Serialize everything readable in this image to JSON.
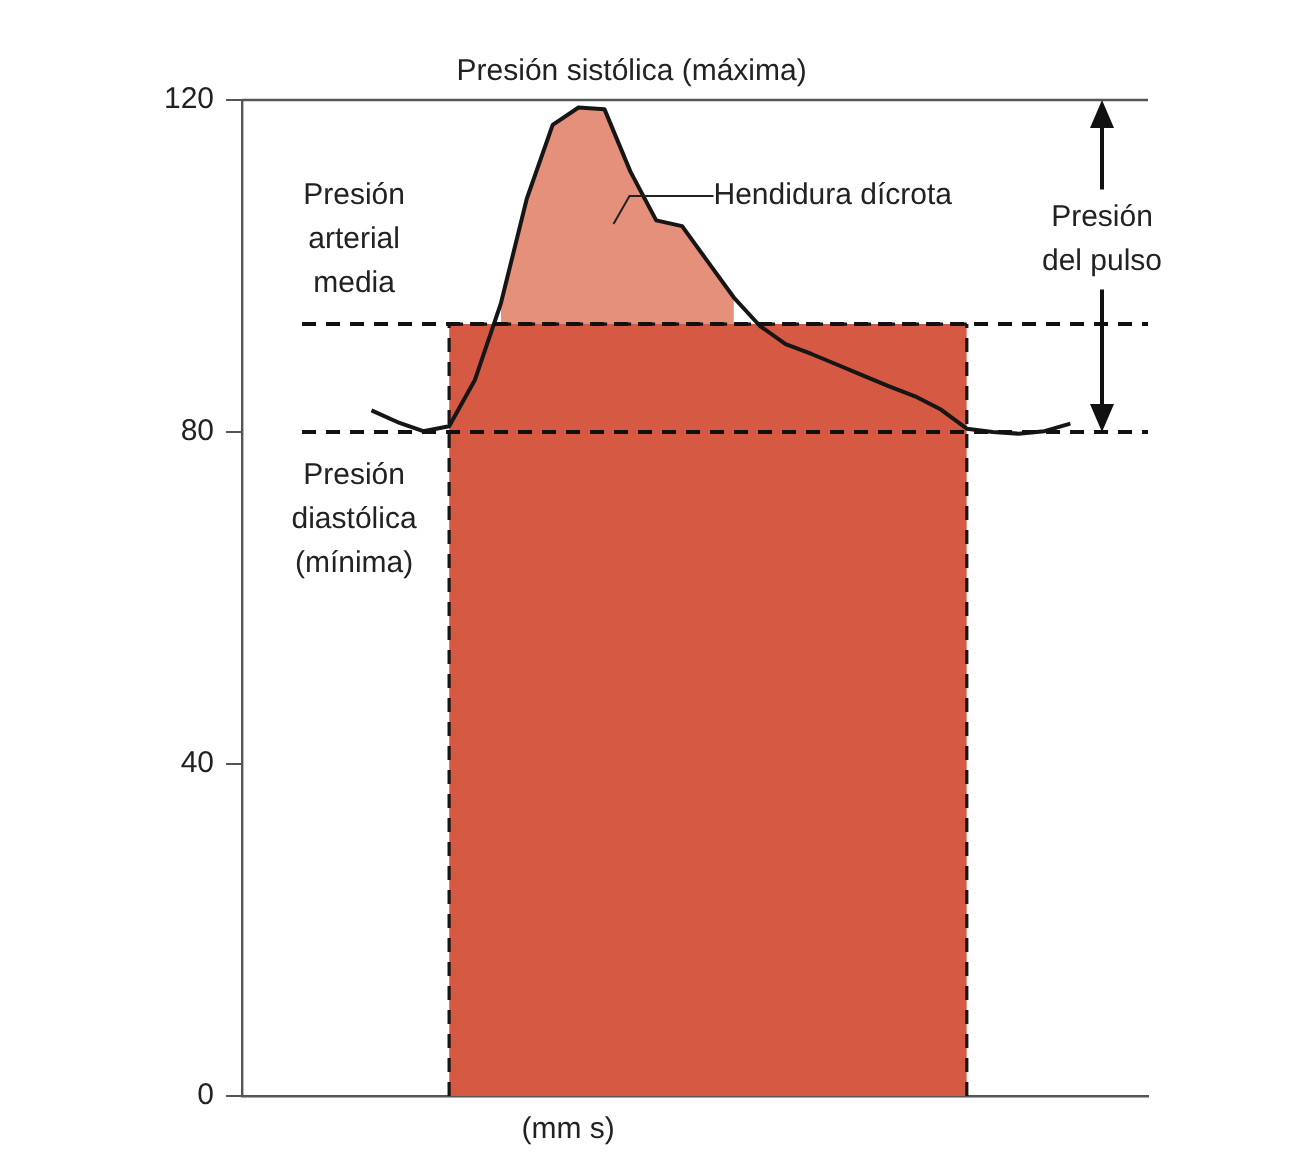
{
  "chart_data": {
    "type": "area",
    "xlabel": "(mm s)",
    "categories": [
      null,
      null,
      null,
      null,
      null,
      null,
      null,
      null,
      null,
      null,
      null,
      null,
      null,
      null,
      null,
      null,
      null,
      null,
      null,
      null,
      null,
      null,
      null,
      null,
      null,
      null,
      null,
      null,
      null,
      null,
      null,
      null,
      null,
      null,
      null,
      null
    ],
    "ylim": [
      0,
      120
    ],
    "yticks": [
      0,
      40,
      80,
      120
    ],
    "tick_labels": "y",
    "grid": false,
    "series": [
      {
        "type": "area",
        "color": "#d65a43",
        "line_style": "dashed",
        "values": [
          null,
          null,
          null,
          null,
          null,
          null,
          null,
          null,
          93,
          93,
          93,
          93,
          93,
          93,
          93,
          93,
          93,
          93,
          93,
          93,
          93,
          93,
          93,
          93,
          93,
          93,
          93,
          93,
          93,
          null,
          null,
          null,
          null,
          null,
          null,
          null
        ]
      },
      {
        "type": "area",
        "color": "#e4907a",
        "values": [
          null,
          null,
          null,
          null,
          null,
          null,
          null,
          null,
          null,
          null,
          95.5,
          108.1,
          117,
          119.1,
          118.9,
          111.4,
          105.5,
          104.8,
          100.5,
          96.2,
          null,
          null,
          null,
          null,
          null,
          null,
          null,
          null,
          null,
          null,
          null,
          null,
          null,
          null,
          null,
          null
        ]
      },
      {
        "type": "line",
        "color": "#161616",
        "line_style": "solid",
        "values": [
          null,
          null,
          null,
          null,
          null,
          82.6,
          81.2,
          80.1,
          80.7,
          86.3,
          95.5,
          108.1,
          117,
          119.1,
          118.9,
          111.4,
          105.5,
          104.8,
          100.5,
          96.2,
          92.8,
          90.6,
          89.4,
          88.1,
          86.8,
          85.5,
          84.3,
          82.7,
          80.4,
          80,
          79.8,
          80.1,
          81,
          null,
          null,
          null
        ]
      }
    ],
    "ref_lines": [
      {
        "axis": "y",
        "value": 120,
        "label": "Presión sistólica (máxima)",
        "color": "#555555",
        "line_style": "solid"
      },
      {
        "axis": "y",
        "value": 93,
        "label": "Presión arterial media",
        "color": "#111111",
        "line_style": "dashed"
      },
      {
        "axis": "y",
        "value": 80,
        "label": "Presión diastólica (mínima)",
        "color": "#111111",
        "line_style": "dashed"
      }
    ],
    "annotations": [
      "Hendidura dícrota",
      "Presión del pulso"
    ]
  }
}
